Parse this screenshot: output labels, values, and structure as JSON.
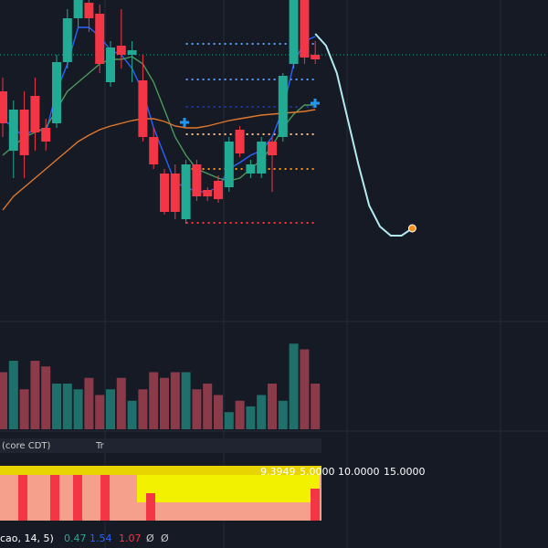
{
  "chart_data": {
    "type": "candlestick",
    "categories": [
      null,
      null,
      null,
      null,
      null,
      null,
      null,
      null,
      null,
      null,
      null,
      null,
      null,
      null,
      null,
      null,
      null,
      null,
      null,
      null,
      null,
      null,
      null,
      null,
      null,
      null,
      null,
      null,
      null,
      null,
      null,
      null,
      null,
      null,
      null,
      null,
      null,
      null,
      null
    ],
    "open": [
      37,
      30.5,
      35,
      36.5,
      33,
      33.5,
      40.2,
      45,
      46.7,
      45.5,
      38,
      42,
      41,
      38.2,
      32,
      28,
      28,
      23,
      29,
      26.2,
      27.2,
      26.5,
      32.8,
      28,
      28,
      31.5,
      32,
      40,
      47,
      41,
      null,
      null,
      null,
      null,
      null,
      null,
      null,
      null,
      null
    ],
    "high": [
      38.5,
      36,
      37,
      38.5,
      34,
      41,
      46,
      47,
      47,
      46.5,
      42.5,
      46,
      42.5,
      41,
      33,
      28.5,
      29,
      29.5,
      29.5,
      26.5,
      27.8,
      32,
      33.2,
      29.5,
      32,
      32,
      39,
      47,
      47,
      42.5,
      null,
      null,
      null,
      null,
      null,
      null,
      null,
      null,
      null
    ],
    "low": [
      32,
      27.5,
      27.5,
      30.5,
      30.5,
      33,
      39.5,
      44,
      43.5,
      39,
      37.5,
      39.5,
      38,
      31.5,
      28.5,
      23.5,
      23,
      22.5,
      25,
      25,
      24.8,
      26,
      29.8,
      27.5,
      27.5,
      26,
      31.5,
      39.5,
      40,
      40,
      null,
      null,
      null,
      null,
      null,
      null,
      null,
      null,
      null
    ],
    "close": [
      33.5,
      35,
      30,
      32.5,
      31.5,
      40.2,
      45,
      47,
      45,
      40,
      41.8,
      41,
      41.5,
      32,
      29,
      23.8,
      23.8,
      29,
      25.5,
      25.5,
      25.2,
      31.5,
      30.2,
      29,
      31.5,
      30,
      38.7,
      47,
      40.7,
      40.5,
      null,
      null,
      null,
      null,
      null,
      null,
      null,
      null,
      null
    ],
    "volume": [
      50,
      60,
      35,
      60,
      55,
      40,
      40,
      35,
      45,
      30,
      35,
      45,
      25,
      35,
      50,
      45,
      50,
      50,
      35,
      40,
      30,
      15,
      25,
      20,
      30,
      40,
      25,
      75,
      70,
      40,
      null,
      null,
      null,
      null,
      null,
      null,
      null,
      null,
      null
    ],
    "up_color": "#22ab94",
    "down_color": "#f23645",
    "volume_up_color": "#1f6f6a",
    "volume_down_color": "#8b3a4a",
    "ylim": [
      0,
      47
    ],
    "volume_lim": [
      0,
      80
    ],
    "series": [
      {
        "color": "#2962ff",
        "values": [
          34,
          33,
          32,
          33,
          32.5,
          37,
          40,
          44,
          44,
          43,
          41.5,
          41,
          39.5,
          37,
          33,
          30,
          27,
          26.5,
          26,
          26,
          26.5,
          28.5,
          29.2,
          30,
          30.5,
          32,
          35,
          40,
          42.5,
          43,
          null,
          null,
          null,
          null,
          null,
          null,
          null,
          null,
          null
        ]
      },
      {
        "color": "#4c9a5a",
        "values": [
          30,
          31,
          32,
          32.5,
          33,
          35,
          37,
          38,
          39,
          40,
          40.5,
          40.5,
          40.8,
          40,
          38,
          35,
          32,
          30,
          28.5,
          28,
          27.5,
          27.2,
          27.5,
          28.5,
          29.5,
          31,
          33,
          34.5,
          35.5,
          35.5,
          null,
          null,
          null,
          null,
          null,
          null,
          null,
          null,
          null
        ]
      },
      {
        "color": "#e0782c",
        "values": [
          24,
          25.5,
          26.5,
          27.5,
          28.5,
          29.5,
          30.5,
          31.5,
          32.2,
          32.8,
          33.2,
          33.5,
          33.8,
          34,
          34,
          33.7,
          33.2,
          33,
          33,
          33.2,
          33.5,
          33.8,
          34,
          34.2,
          34.4,
          34.5,
          34.6,
          34.7,
          34.8,
          35,
          null,
          null,
          null,
          null,
          null,
          null,
          null,
          null,
          null
        ]
      },
      {
        "color": "#b2ebf2",
        "values": [
          null,
          null,
          null,
          null,
          null,
          null,
          null,
          null,
          null,
          null,
          null,
          null,
          null,
          null,
          null,
          null,
          null,
          null,
          null,
          null,
          null,
          null,
          null,
          null,
          null,
          null,
          null,
          null,
          null,
          43.3,
          42,
          39,
          34,
          29,
          24.5,
          22.2,
          21.2,
          21.2,
          22
        ]
      }
    ],
    "levels": [
      {
        "value": 42.2,
        "color": "#5b9cf6"
      },
      {
        "value": 38.3,
        "color": "#5b9cf6"
      },
      {
        "value": 35.3,
        "color": "#1e3a9e"
      },
      {
        "value": 32.3,
        "color": "#f5b98a"
      },
      {
        "value": 28.5,
        "color": "#f7931e"
      },
      {
        "value": 22.6,
        "color": "#f23645"
      }
    ],
    "price_line": 41,
    "indicator_texts": [
      "(core CDT)",
      "Tr",
      "9.3949",
      "5.0000",
      "10.0000",
      "15.0000"
    ],
    "footer_texts": [
      "cao, 14, 5)",
      "0.47",
      "1.54",
      "1.07",
      "Ø",
      "Ø"
    ]
  }
}
